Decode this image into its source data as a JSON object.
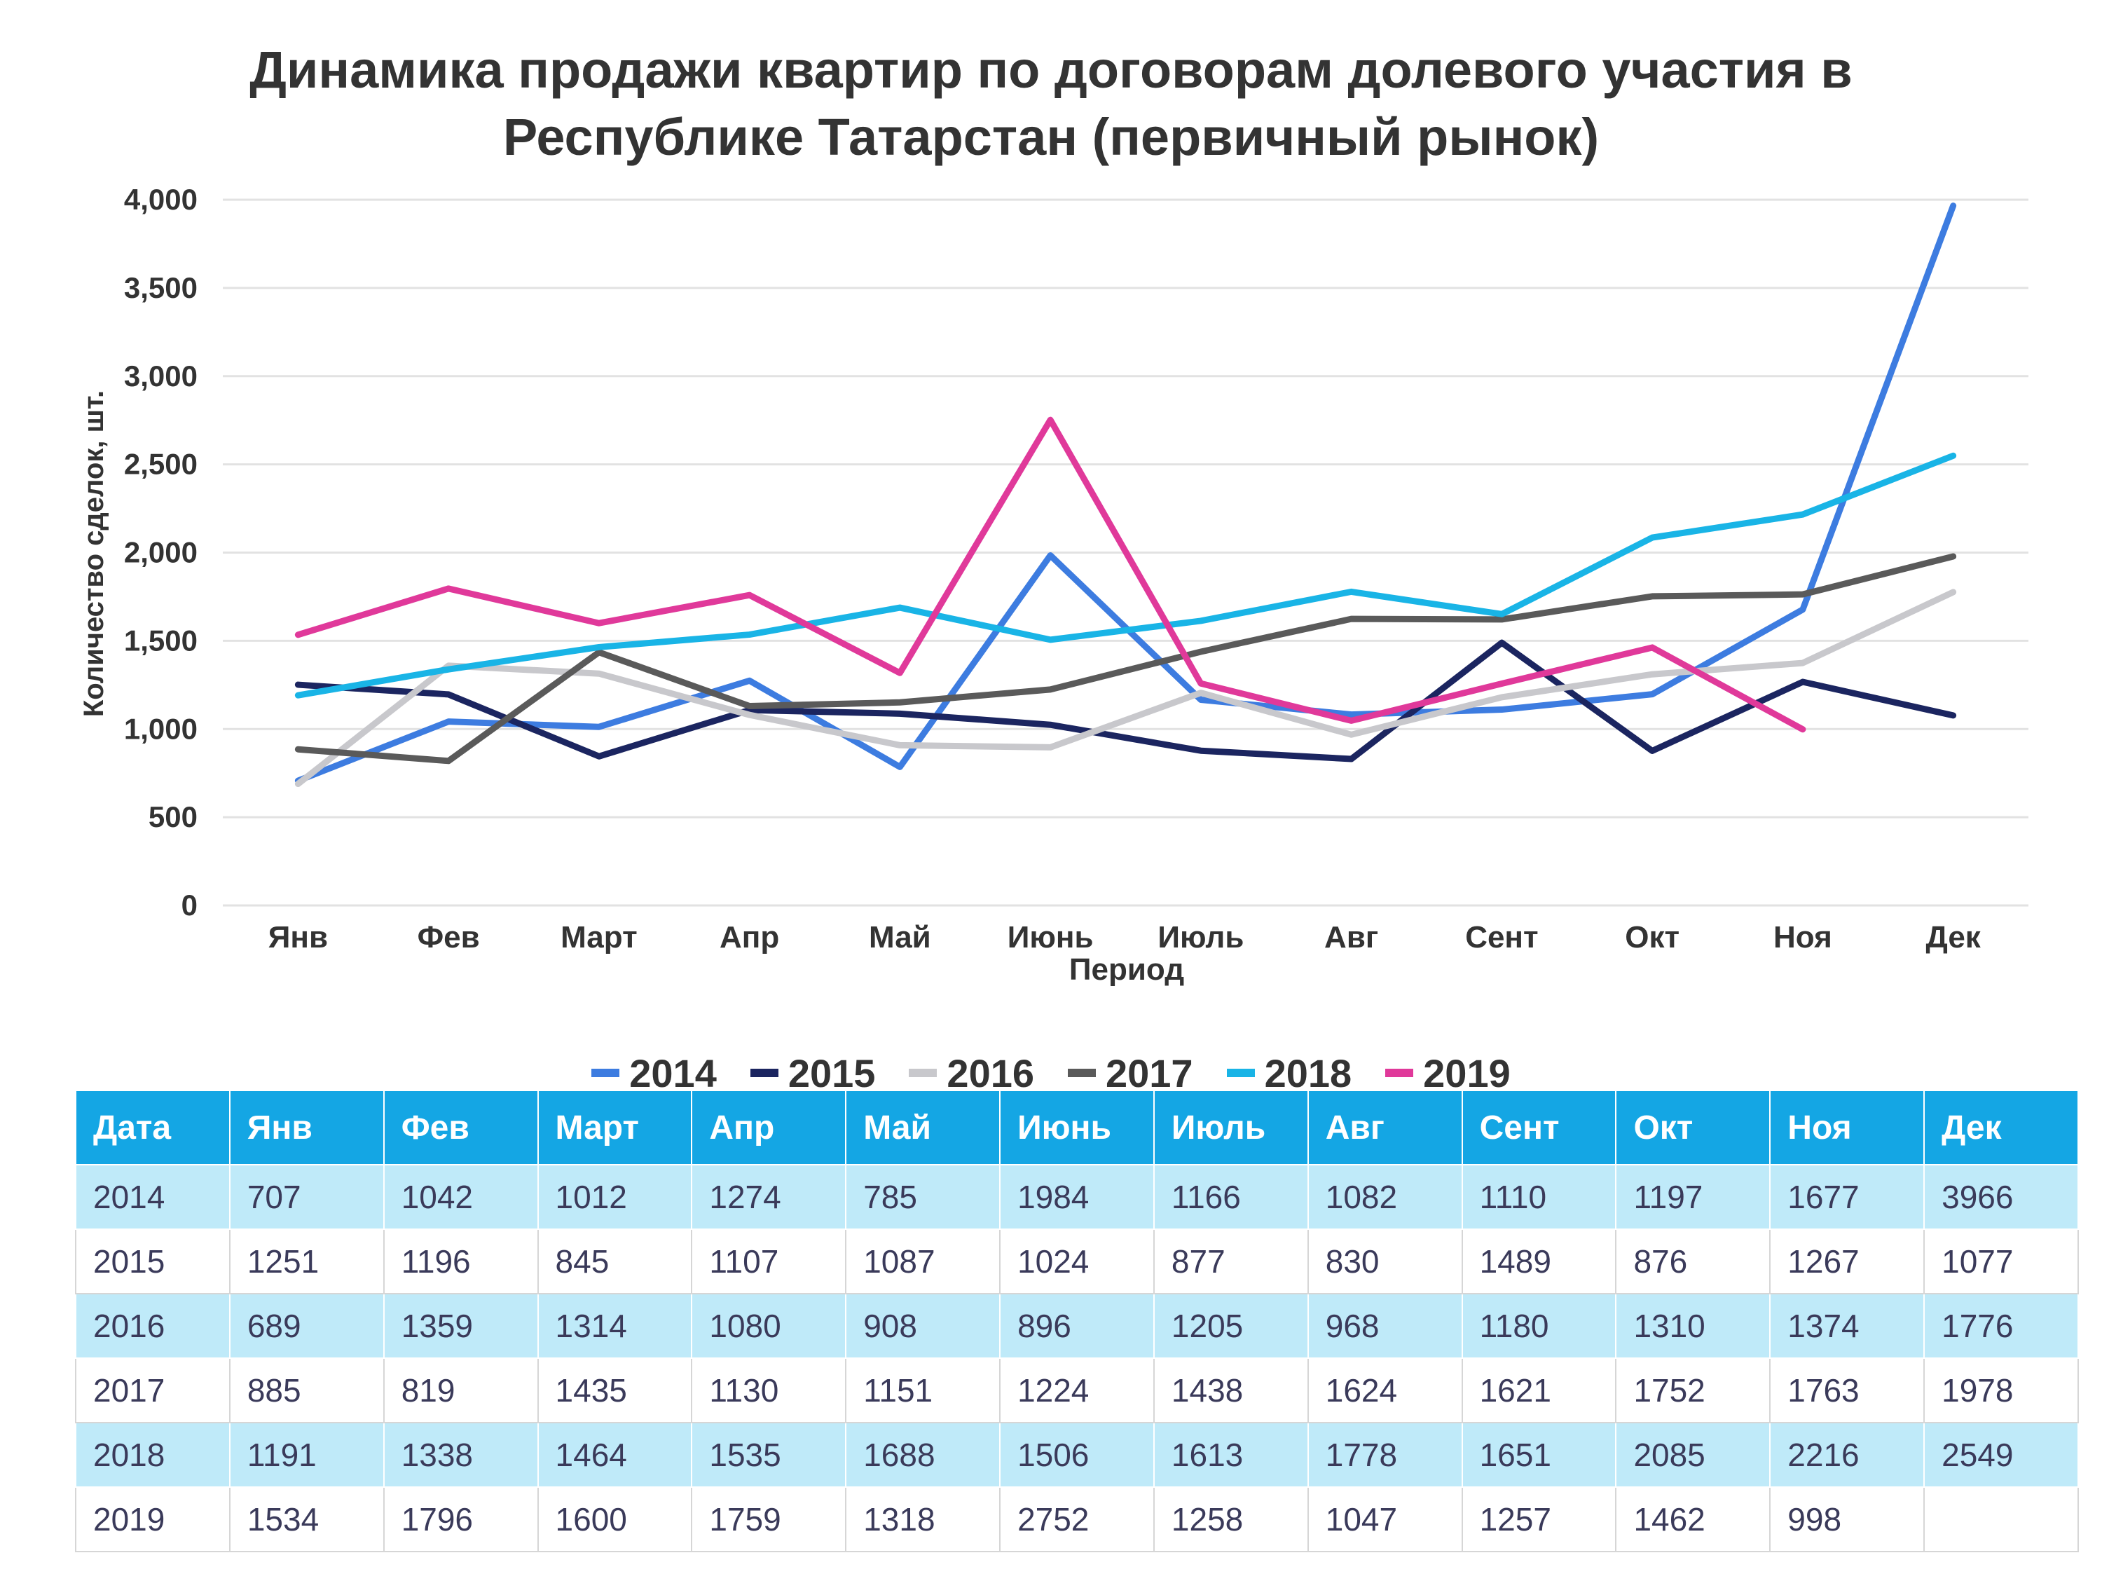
{
  "chart_data": {
    "type": "line",
    "title": [
      "Динамика продажи квартир по договорам долевого участия в",
      "Республике Татарстан (первичный рынок)"
    ],
    "xlabel": "Период",
    "ylabel": "Количество сделок, шт.",
    "categories": [
      "Янв",
      "Фев",
      "Март",
      "Апр",
      "Май",
      "Июнь",
      "Июль",
      "Авг",
      "Сент",
      "Окт",
      "Ноя",
      "Дек"
    ],
    "ylim": [
      0,
      4000
    ],
    "yticks": [
      0,
      500,
      1000,
      1500,
      2000,
      2500,
      3000,
      3500,
      4000
    ],
    "ytick_labels": [
      "0",
      "500",
      "1,000",
      "1,500",
      "2,000",
      "2,500",
      "3,000",
      "3,500",
      "4,000"
    ],
    "grid": "horizontal",
    "legend_position": "bottom",
    "series": [
      {
        "name": "2014",
        "color": "#3d7ce0",
        "values": [
          707,
          1042,
          1012,
          1274,
          785,
          1984,
          1166,
          1082,
          1110,
          1197,
          1677,
          3966
        ]
      },
      {
        "name": "2015",
        "color": "#1b2560",
        "values": [
          1251,
          1196,
          845,
          1107,
          1087,
          1024,
          877,
          830,
          1489,
          876,
          1267,
          1077
        ]
      },
      {
        "name": "2016",
        "color": "#c8c8cc",
        "values": [
          689,
          1359,
          1314,
          1080,
          908,
          896,
          1205,
          968,
          1180,
          1310,
          1374,
          1776
        ]
      },
      {
        "name": "2017",
        "color": "#5a5a5a",
        "values": [
          885,
          819,
          1435,
          1130,
          1151,
          1224,
          1438,
          1624,
          1621,
          1752,
          1763,
          1978
        ]
      },
      {
        "name": "2018",
        "color": "#19b4e6",
        "values": [
          1191,
          1338,
          1464,
          1535,
          1688,
          1506,
          1613,
          1778,
          1651,
          2085,
          2216,
          2549
        ]
      },
      {
        "name": "2019",
        "color": "#e0399a",
        "values": [
          1534,
          1796,
          1600,
          1759,
          1318,
          2752,
          1258,
          1047,
          1257,
          1462,
          998,
          null
        ]
      }
    ]
  },
  "table": {
    "header": [
      "Дата",
      "Янв",
      "Фев",
      "Март",
      "Апр",
      "Май",
      "Июнь",
      "Июль",
      "Авг",
      "Сент",
      "Окт",
      "Ноя",
      "Дек"
    ],
    "rows": [
      [
        "2014",
        "707",
        "1042",
        "1012",
        "1274",
        "785",
        "1984",
        "1166",
        "1082",
        "1110",
        "1197",
        "1677",
        "3966"
      ],
      [
        "2015",
        "1251",
        "1196",
        "845",
        "1107",
        "1087",
        "1024",
        "877",
        "830",
        "1489",
        "876",
        "1267",
        "1077"
      ],
      [
        "2016",
        "689",
        "1359",
        "1314",
        "1080",
        "908",
        "896",
        "1205",
        "968",
        "1180",
        "1310",
        "1374",
        "1776"
      ],
      [
        "2017",
        "885",
        "819",
        "1435",
        "1130",
        "1151",
        "1224",
        "1438",
        "1624",
        "1621",
        "1752",
        "1763",
        "1978"
      ],
      [
        "2018",
        "1191",
        "1338",
        "1464",
        "1535",
        "1688",
        "1506",
        "1613",
        "1778",
        "1651",
        "2085",
        "2216",
        "2549"
      ],
      [
        "2019",
        "1534",
        "1796",
        "1600",
        "1759",
        "1318",
        "2752",
        "1258",
        "1047",
        "1257",
        "1462",
        "998",
        ""
      ]
    ]
  },
  "colors": {
    "table_header_bg": "#14a6e4",
    "table_alt_row_bg": "#bfeaf9",
    "gridline": "#e2e2e2"
  }
}
